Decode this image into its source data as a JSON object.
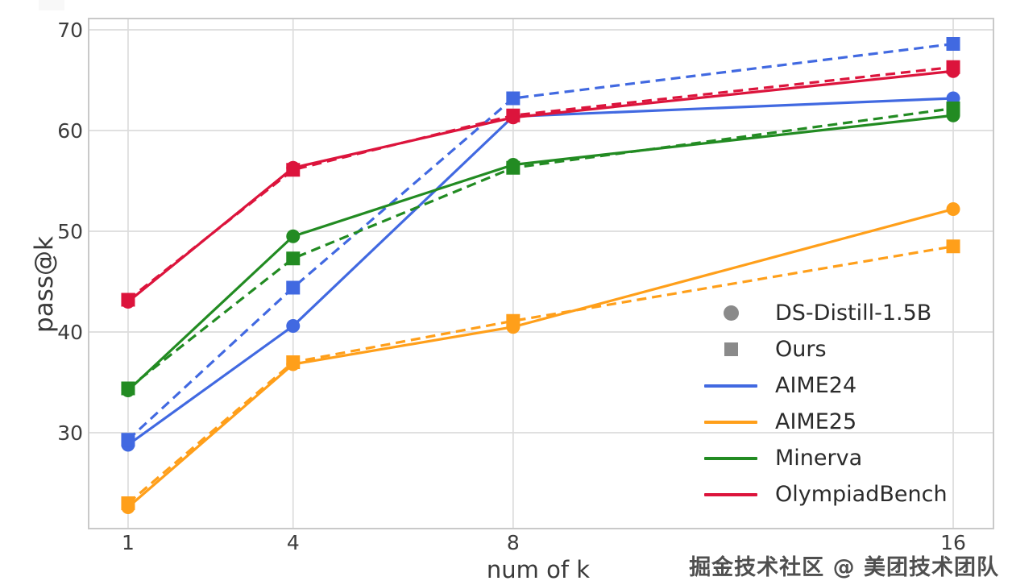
{
  "figure": {
    "watermark": "掘金技术社区 @ 美团技术团队",
    "colors": {
      "background": "#ffffff",
      "grid": "#dcdcdc",
      "spine": "#c9c9c9",
      "tick_text": "#3d3d3d",
      "legend_marker_gray": "#8a8a8a"
    }
  },
  "chart_data": {
    "type": "line",
    "title": "",
    "xlabel": "num of k",
    "ylabel": "pass@k",
    "x": [
      1,
      4,
      8,
      16
    ],
    "x_tick_labels": [
      "1",
      "4",
      "8",
      "16"
    ],
    "y_ticks": [
      30,
      40,
      50,
      60,
      70
    ],
    "y_tick_labels": [
      "30",
      "40",
      "50",
      "60",
      "70"
    ],
    "xlim": [
      0.283,
      16.732
    ],
    "ylim": [
      20.48,
      71.12
    ],
    "grid": true,
    "legend_position": "center-right",
    "marker_legend": [
      {
        "label": "DS-Distill-1.5B",
        "marker": "circle",
        "color": "#8a8a8a"
      },
      {
        "label": "Ours",
        "marker": "square",
        "color": "#8a8a8a"
      }
    ],
    "benchmark_legend": [
      {
        "label": "AIME24",
        "color": "#4169e1"
      },
      {
        "label": "AIME25",
        "color": "#ff9f1a"
      },
      {
        "label": "Minerva",
        "color": "#228b22"
      },
      {
        "label": "OlympiadBench",
        "color": "#dc143c"
      }
    ],
    "series": [
      {
        "name": "AIME24 — DS-Distill-1.5B",
        "benchmark": "AIME24",
        "model": "DS-Distill-1.5B",
        "color": "#4169e1",
        "line": "solid",
        "marker": "circle",
        "values": [
          28.8,
          40.6,
          61.4,
          63.2
        ]
      },
      {
        "name": "AIME24 — Ours",
        "benchmark": "AIME24",
        "model": "Ours",
        "color": "#4169e1",
        "line": "dashed",
        "marker": "square",
        "values": [
          29.3,
          44.4,
          63.2,
          68.6
        ]
      },
      {
        "name": "AIME25 — DS-Distill-1.5B",
        "benchmark": "AIME25",
        "model": "DS-Distill-1.5B",
        "color": "#ff9f1a",
        "line": "solid",
        "marker": "circle",
        "values": [
          22.6,
          36.8,
          40.5,
          52.2
        ]
      },
      {
        "name": "AIME25 — Ours",
        "benchmark": "AIME25",
        "model": "Ours",
        "color": "#ff9f1a",
        "line": "dashed",
        "marker": "square",
        "values": [
          23.0,
          37.0,
          41.1,
          48.5
        ]
      },
      {
        "name": "Minerva — DS-Distill-1.5B",
        "benchmark": "Minerva",
        "model": "DS-Distill-1.5B",
        "color": "#228b22",
        "line": "solid",
        "marker": "circle",
        "values": [
          34.2,
          49.5,
          56.6,
          61.5
        ]
      },
      {
        "name": "Minerva — Ours",
        "benchmark": "Minerva",
        "model": "Ours",
        "color": "#228b22",
        "line": "dashed",
        "marker": "square",
        "values": [
          34.4,
          47.3,
          56.3,
          62.2
        ]
      },
      {
        "name": "OlympiadBench — DS-Distill-1.5B",
        "benchmark": "OlympiadBench",
        "model": "DS-Distill-1.5B",
        "color": "#dc143c",
        "line": "solid",
        "marker": "circle",
        "values": [
          43.0,
          56.3,
          61.3,
          65.9
        ]
      },
      {
        "name": "OlympiadBench — Ours",
        "benchmark": "OlympiadBench",
        "model": "Ours",
        "color": "#dc143c",
        "line": "dashed",
        "marker": "square",
        "values": [
          43.2,
          56.1,
          61.5,
          66.3
        ]
      }
    ]
  }
}
